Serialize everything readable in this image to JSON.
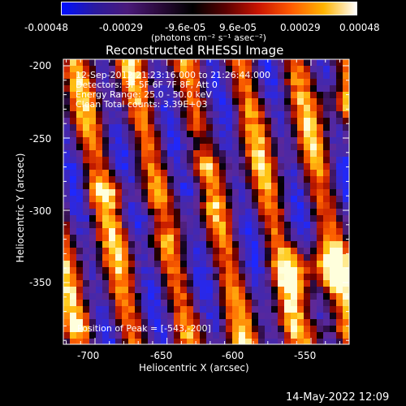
{
  "colorbar": {
    "colors": [
      "#0010ff",
      "#2a1aa0",
      "#4a1a7a",
      "#2a0a3a",
      "#000000",
      "#5a0000",
      "#c81400",
      "#ff5a00",
      "#ffb400",
      "#ffffff"
    ],
    "tick_labels": [
      "-0.00048",
      "-0.00029",
      "-9.6e-05",
      "9.6e-05",
      "0.00029",
      "0.00048"
    ],
    "units_label": "(photons cm⁻² s⁻¹ asec⁻²)"
  },
  "plot": {
    "title": "Reconstructed RHESSI Image",
    "xlabel": "Heliocentric X (arcsec)",
    "ylabel": "Heliocentric Y (arcsec)",
    "x_ticks": [
      "-700",
      "-650",
      "-600",
      "-550"
    ],
    "y_ticks": [
      "-200",
      "-250",
      "-300",
      "-350"
    ],
    "info_lines": [
      "12-Sep-2012 21:23:16.000 to 21:26:44.000",
      "Detectors: 3F 5F 6F 7F 8F, Att 0",
      "Energy Range: 25.0 - 50.0 keV",
      "Clean     Total counts: 3.39E+03"
    ],
    "peak_label": "Position of Peak = [-543,-200]"
  },
  "footer": {
    "timestamp": "14-May-2022 12:09"
  }
}
